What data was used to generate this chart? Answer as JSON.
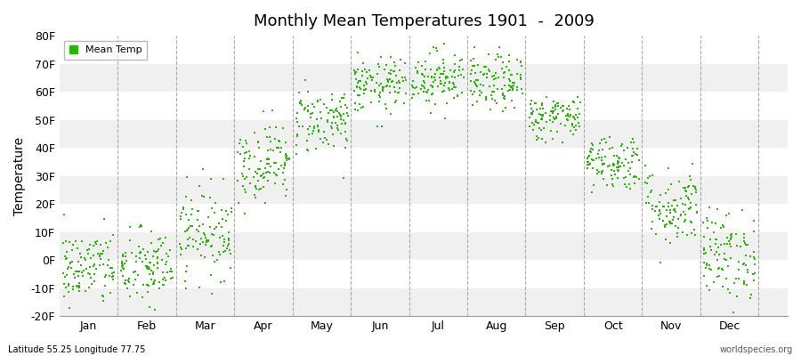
{
  "title": "Monthly Mean Temperatures 1901  -  2009",
  "ylabel": "Temperature",
  "bg_color": "#ffffff",
  "plot_bg_color": "#ffffff",
  "dot_color": "#22bb00",
  "dot_size": 2.5,
  "ylim": [
    -20,
    80
  ],
  "yticks": [
    -20,
    -10,
    0,
    10,
    20,
    30,
    40,
    50,
    60,
    70,
    80
  ],
  "ytick_labels": [
    "-20F",
    "-10F",
    "0F",
    "10F",
    "20F",
    "30F",
    "40F",
    "50F",
    "60F",
    "70F",
    "80F"
  ],
  "month_names": [
    "Jan",
    "Feb",
    "Mar",
    "Apr",
    "May",
    "Jun",
    "Jul",
    "Aug",
    "Sep",
    "Oct",
    "Nov",
    "Dec"
  ],
  "footer_left": "Latitude 55.25 Longitude 77.75",
  "footer_right": "worldspecies.org",
  "legend_label": "Mean Temp",
  "monthly_means": [
    -3,
    -3,
    10,
    35,
    50,
    62,
    65,
    63,
    51,
    35,
    19,
    2
  ],
  "monthly_spreads": [
    7,
    7,
    8,
    7,
    6,
    5,
    5,
    5,
    4,
    5,
    7,
    8
  ],
  "n_points": 109,
  "seed": 42,
  "band_colors": [
    "#f0f0f0",
    "#ffffff"
  ],
  "grid_color": "#aaaaaa",
  "spine_color": "#cccccc"
}
